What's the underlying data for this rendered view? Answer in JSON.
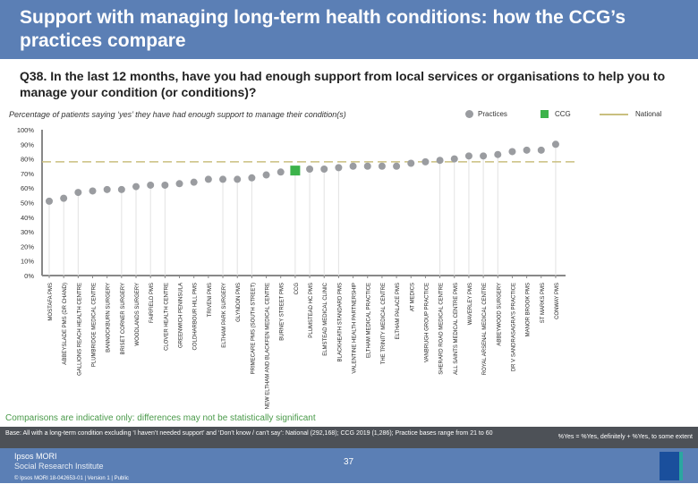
{
  "header": {
    "title": "Support with managing long-term health conditions: how the CCG’s practices compare"
  },
  "question": "Q38. In the last 12 months, have you had enough support from local services or organisations to help you to manage your condition (or conditions)?",
  "chart_data": {
    "type": "scatter",
    "title": "Percentage of patients saying ‘yes’ they have had enough support to manage their condition(s)",
    "ylim": [
      0,
      100
    ],
    "yticks": [
      "0%",
      "10%",
      "20%",
      "30%",
      "40%",
      "50%",
      "60%",
      "70%",
      "80%",
      "90%",
      "100%"
    ],
    "legend": {
      "practices": "Practices",
      "ccg": "CCG",
      "national": "National",
      "placement": "top-right"
    },
    "colors": {
      "practices": "#9a9ca0",
      "ccg": "#3cb34a",
      "national": "#c9bf7f"
    },
    "national": 78,
    "categories": [
      "MOSTAFA PMS",
      "ABBEYSLADE PMS (DR CHAND)",
      "GALLIONS REACH HEALTH CENTRE",
      "PLUMBRIDGE MEDICAL CENTRE",
      "BANNOCKBURN SURGERY",
      "BRISET CORNER SURGERY",
      "WOODLANDS SURGERY",
      "FAIRFIELD PMS",
      "CLOVER HEALTH CENTRE",
      "GREENWICH PENINSULA",
      "COLDHARBOUR HILL PMS",
      "TRIVENI PMS",
      "ELTHAM PARK SURGERY",
      "GLYNDON PMS",
      "PRIMECARE PMS (SOUTH STREET)",
      "NEW ELTHAM AND BLACKFEN MEDICAL CENTRE",
      "BURNEY STREET PMS",
      "CCG",
      "PLUMSTEAD HC PMS",
      "ELMSTEAD MEDICAL CLINIC",
      "BLACKHEATH STANDARD PMS",
      "VALENTINE HEALTH PARTNERSHIP",
      "ELTHAM MEDICAL PRACTICE",
      "THE TRINITY MEDICAL CENTRE",
      "ELTHAM PALACE PMS",
      "AT MEDICS",
      "VANBRUGH GROUP PRACTICE",
      "SHERARD ROAD MEDICAL CENTRE",
      "ALL SAINTS MEDICAL CENTRE PMS",
      "WAVERLEY PMS",
      "ROYAL ARSENAL MEDICAL CENTRE",
      "ABBEYWOOD SURGERY",
      "DR V SANDRASAGRA'S PRACTICE",
      "MANOR BROOK PMS",
      "ST MARKS PMS",
      "CONWAY PMS"
    ],
    "values": [
      51,
      53,
      57,
      58,
      59,
      59,
      61,
      62,
      62,
      63,
      64,
      66,
      66,
      66,
      67,
      69,
      71,
      72,
      73,
      73,
      74,
      75,
      75,
      75,
      75,
      77,
      78,
      79,
      80,
      82,
      82,
      83,
      85,
      86,
      86,
      90
    ],
    "stems": [
      true,
      true,
      true,
      false,
      false,
      true,
      true,
      true,
      true,
      false,
      false,
      false,
      true,
      true,
      true,
      false,
      false,
      true,
      true,
      true,
      true,
      false,
      false,
      false,
      false,
      false,
      false,
      true,
      true,
      true,
      true,
      true,
      false,
      false,
      false,
      true
    ]
  },
  "note": "Comparisons are indicative only: differences may not be statistically significant",
  "base": {
    "left": "Base: All with a long-term condition excluding ‘I haven’t needed support’ and ‘Don’t know / can’t say’: National (292,168); CCG 2019 (1,286); Practice bases range from 21 to 60",
    "right": "%Yes = %Yes, definitely + %Yes, to some extent"
  },
  "footer": {
    "brand": "Ipsos MORI",
    "brand_sub": "Social Research Institute",
    "ref": "© Ipsos MORI    18-042653-01 | Version 1 | Public",
    "page": "37",
    "logo": "Ipsos"
  }
}
